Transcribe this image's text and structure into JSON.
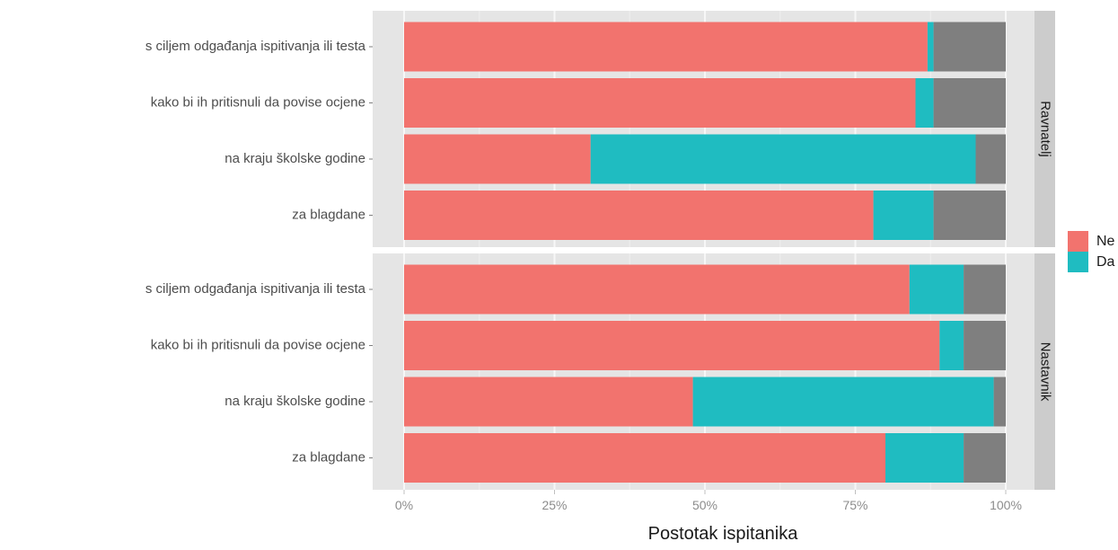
{
  "chart_data": {
    "type": "bar",
    "orientation": "horizontal",
    "stacked": true,
    "xlabel": "Postotak ispitanika",
    "xlim": [
      0,
      100
    ],
    "x_ticks": [
      "0%",
      "25%",
      "50%",
      "75%",
      "100%"
    ],
    "x_tick_values": [
      0,
      25,
      50,
      75,
      100
    ],
    "grid": true,
    "legend": {
      "position": "right",
      "entries": [
        {
          "label": "Ne",
          "color": "#f2736e"
        },
        {
          "label": "Da",
          "color": "#1fbcc1"
        }
      ]
    },
    "series_colors": {
      "Ne": "#f2736e",
      "Da": "#1fbcc1",
      "remainder": "#7f7f7f"
    },
    "panels": [
      {
        "facet": "Ravnatelj",
        "categories": [
          "s ciljem odgađanja ispitivanja ili testa",
          "kako bi ih pritisnuli da povise ocjene",
          "na kraju školske godine",
          "za blagdane"
        ],
        "series": [
          {
            "name": "Ne",
            "values": [
              87,
              85,
              31,
              78
            ]
          },
          {
            "name": "Da",
            "values": [
              1,
              3,
              64,
              10
            ]
          }
        ],
        "remainder": [
          12,
          12,
          5,
          12
        ]
      },
      {
        "facet": "Nastavnik",
        "categories": [
          "s ciljem odgađanja ispitivanja ili testa",
          "kako bi ih pritisnuli da povise ocjene",
          "na kraju školske godine",
          "za blagdane"
        ],
        "series": [
          {
            "name": "Ne",
            "values": [
              84,
              89,
              48,
              80
            ]
          },
          {
            "name": "Da",
            "values": [
              9,
              4,
              50,
              13
            ]
          }
        ],
        "remainder": [
          7,
          7,
          2,
          7
        ]
      }
    ]
  }
}
